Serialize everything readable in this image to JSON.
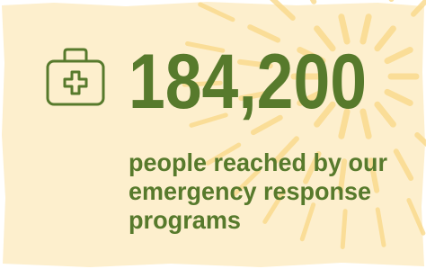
{
  "stat": {
    "value": "184,200",
    "caption_lines": [
      "people reached by our",
      "emergency response",
      "programs"
    ]
  }
}
